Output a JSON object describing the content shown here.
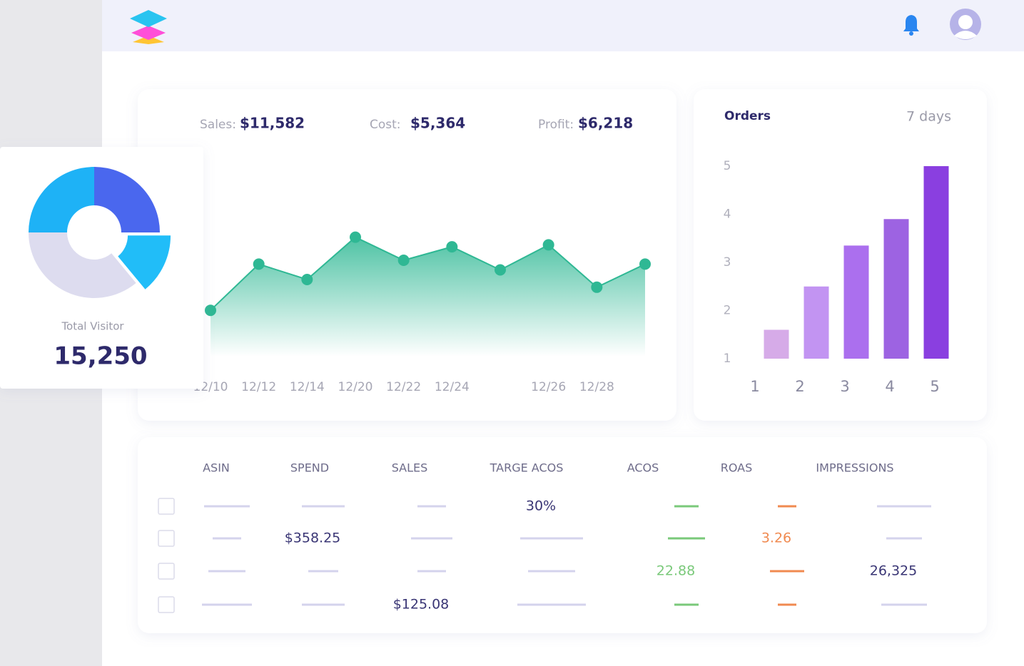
{
  "stats": {
    "sales_label": "Sales:",
    "sales_value": "$11,582",
    "cost_label": "Cost:",
    "cost_value": "$5,364",
    "profit_label": "Profit:",
    "profit_value": "$6,218"
  },
  "visitor": {
    "label": "Total Visitor",
    "value": "15,250"
  },
  "chart_data": [
    {
      "type": "area",
      "categories": [
        "12/10",
        "12/12",
        "12/14",
        "12/20",
        "12/22",
        "12/24",
        null,
        "12/26",
        "12/28",
        null
      ],
      "values": [
        24,
        48,
        40,
        62,
        50,
        57,
        45,
        58,
        36,
        48
      ],
      "ylim": [
        0,
        100
      ],
      "color": "#2fb894"
    },
    {
      "type": "bar",
      "title": "Orders",
      "subtitle": "7 days",
      "categories": [
        1,
        2,
        3,
        4,
        5
      ],
      "values": [
        1.6,
        2.5,
        3.35,
        3.9,
        5
      ],
      "ylim": [
        1,
        5
      ],
      "yticks": [
        1,
        2,
        3,
        4,
        5
      ],
      "colors": [
        "#d6abe8",
        "#c294f2",
        "#ab6fee",
        "#9d63e2",
        "#8a3fe0"
      ]
    },
    {
      "type": "pie",
      "values": [
        25,
        14,
        36,
        25
      ],
      "colors": [
        "#4a67ee",
        "#21bdf8",
        "#dddcef",
        "#1eb2f6"
      ],
      "hole": true
    }
  ],
  "table": {
    "headers": [
      "ASIN",
      "SPEND",
      "SALES",
      "TARGE ACOS",
      "ACOS",
      "ROAS",
      "IMPRESSIONS"
    ],
    "rows": [
      [
        null,
        null,
        null,
        "30%",
        null,
        null,
        null
      ],
      [
        null,
        "$358.25",
        null,
        null,
        null,
        "3.26",
        null
      ],
      [
        null,
        null,
        null,
        null,
        "22.88",
        null,
        "26,325"
      ],
      [
        null,
        null,
        "$125.08",
        null,
        null,
        null,
        null
      ]
    ]
  }
}
